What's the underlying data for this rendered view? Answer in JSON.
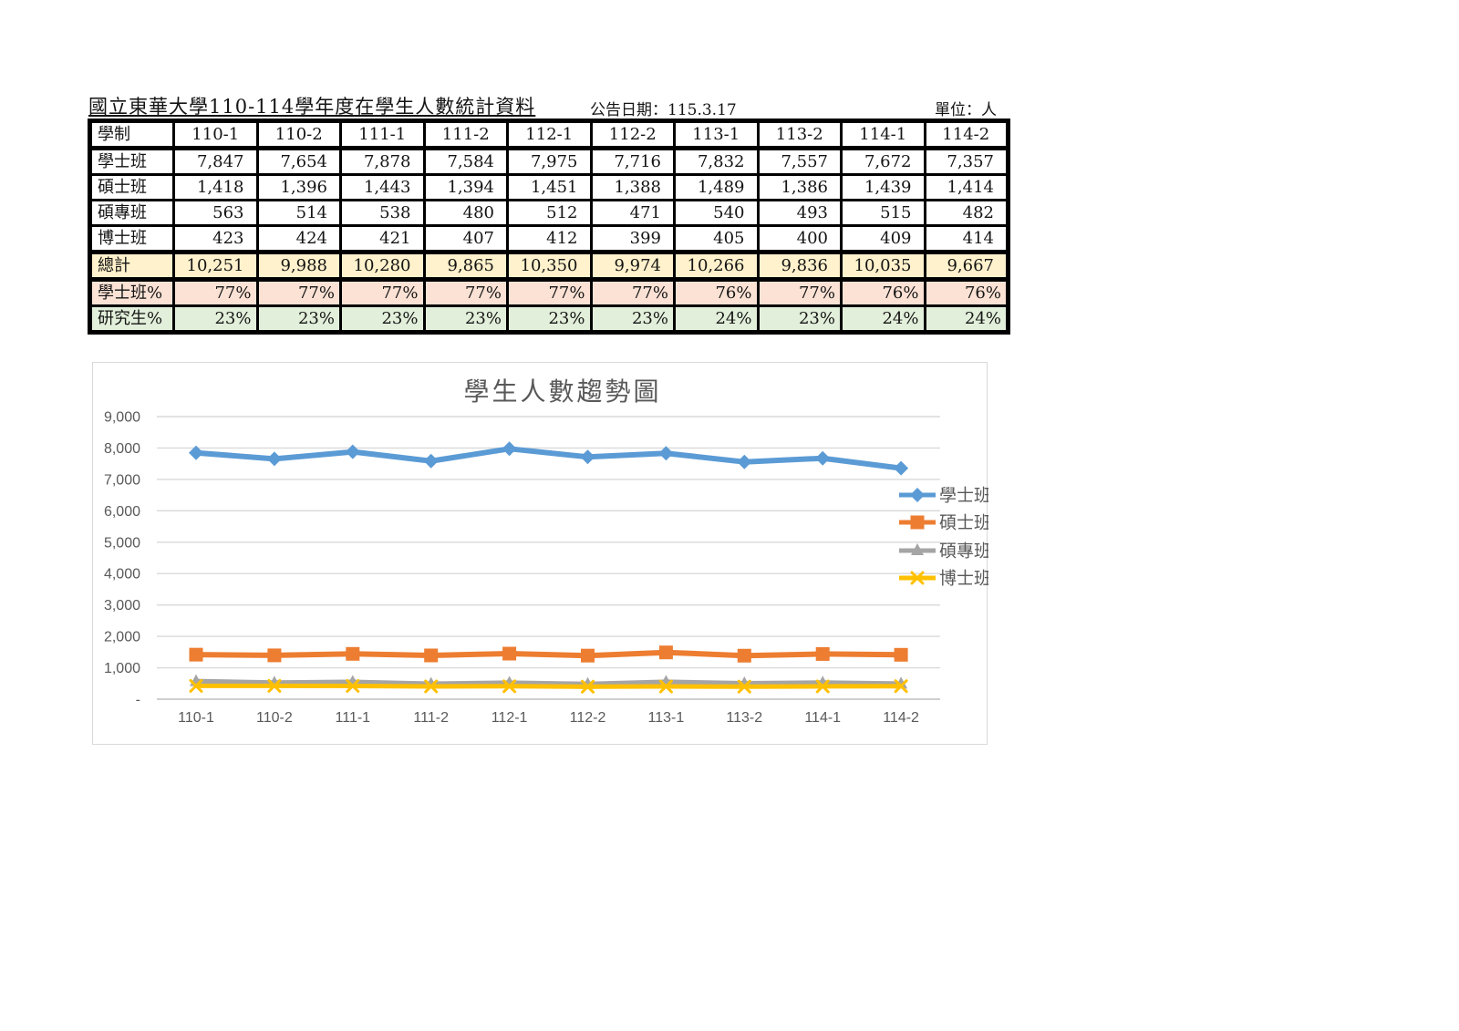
{
  "header": {
    "title": "國立東華大學110-114學年度在學生人數統計資料",
    "publish_date": "公告日期：115.3.17",
    "unit": "單位：人"
  },
  "table": {
    "corner_label": "學制",
    "columns": [
      "110-1",
      "110-2",
      "111-1",
      "111-2",
      "112-1",
      "112-2",
      "113-1",
      "113-2",
      "114-1",
      "114-2"
    ],
    "rows": [
      {
        "label": "學士班",
        "type": "data",
        "bg": "#FFFFFF",
        "values": [
          "7,847",
          "7,654",
          "7,878",
          "7,584",
          "7,975",
          "7,716",
          "7,832",
          "7,557",
          "7,672",
          "7,357"
        ]
      },
      {
        "label": "碩士班",
        "type": "data",
        "bg": "#FFFFFF",
        "values": [
          "1,418",
          "1,396",
          "1,443",
          "1,394",
          "1,451",
          "1,388",
          "1,489",
          "1,386",
          "1,439",
          "1,414"
        ]
      },
      {
        "label": "碩專班",
        "type": "data",
        "bg": "#FFFFFF",
        "values": [
          "563",
          "514",
          "538",
          "480",
          "512",
          "471",
          "540",
          "493",
          "515",
          "482"
        ]
      },
      {
        "label": "博士班",
        "type": "data",
        "bg": "#FFFFFF",
        "values": [
          "423",
          "424",
          "421",
          "407",
          "412",
          "399",
          "405",
          "400",
          "409",
          "414"
        ]
      },
      {
        "label": "總計",
        "type": "total",
        "bg": "#FFF2CC",
        "values": [
          "10,251",
          "9,988",
          "10,280",
          "9,865",
          "10,350",
          "9,974",
          "10,266",
          "9,836",
          "10,035",
          "9,667"
        ]
      },
      {
        "label": "學士班%",
        "type": "percent",
        "bg": "#FBE2D5",
        "values": [
          "77%",
          "77%",
          "77%",
          "77%",
          "77%",
          "77%",
          "76%",
          "77%",
          "76%",
          "76%"
        ]
      },
      {
        "label": "研究生%",
        "type": "percent",
        "bg": "#E2EFDA",
        "values": [
          "23%",
          "23%",
          "23%",
          "23%",
          "23%",
          "23%",
          "24%",
          "23%",
          "24%",
          "24%"
        ]
      }
    ]
  },
  "chart_data": {
    "type": "line",
    "title": "學生人數趨勢圖",
    "categories": [
      "110-1",
      "110-2",
      "111-1",
      "111-2",
      "112-1",
      "112-2",
      "113-1",
      "113-2",
      "114-1",
      "114-2"
    ],
    "series": [
      {
        "name": "學士班",
        "color": "#5B9BD5",
        "marker": "diamond",
        "values": [
          7847,
          7654,
          7878,
          7584,
          7975,
          7716,
          7832,
          7557,
          7672,
          7357
        ]
      },
      {
        "name": "碩士班",
        "color": "#ED7D31",
        "marker": "square",
        "values": [
          1418,
          1396,
          1443,
          1394,
          1451,
          1388,
          1489,
          1386,
          1439,
          1414
        ]
      },
      {
        "name": "碩專班",
        "color": "#A5A5A5",
        "marker": "triangle",
        "values": [
          563,
          514,
          538,
          480,
          512,
          471,
          540,
          493,
          515,
          482
        ]
      },
      {
        "name": "博士班",
        "color": "#FFC000",
        "marker": "x",
        "values": [
          423,
          424,
          421,
          407,
          412,
          399,
          405,
          400,
          409,
          414
        ]
      }
    ],
    "ylim": [
      0,
      9000
    ],
    "ytick_step": 1000,
    "ytick_labels": [
      "-",
      "1,000",
      "2,000",
      "3,000",
      "4,000",
      "5,000",
      "6,000",
      "7,000",
      "8,000",
      "9,000"
    ],
    "grid": true,
    "legend_position": "right",
    "colors": {
      "gridline": "#D9D9D9",
      "axis_line": "#BFBFBF",
      "axis_text": "#595959",
      "title_text": "#595959",
      "legend_text": "#595959"
    }
  }
}
